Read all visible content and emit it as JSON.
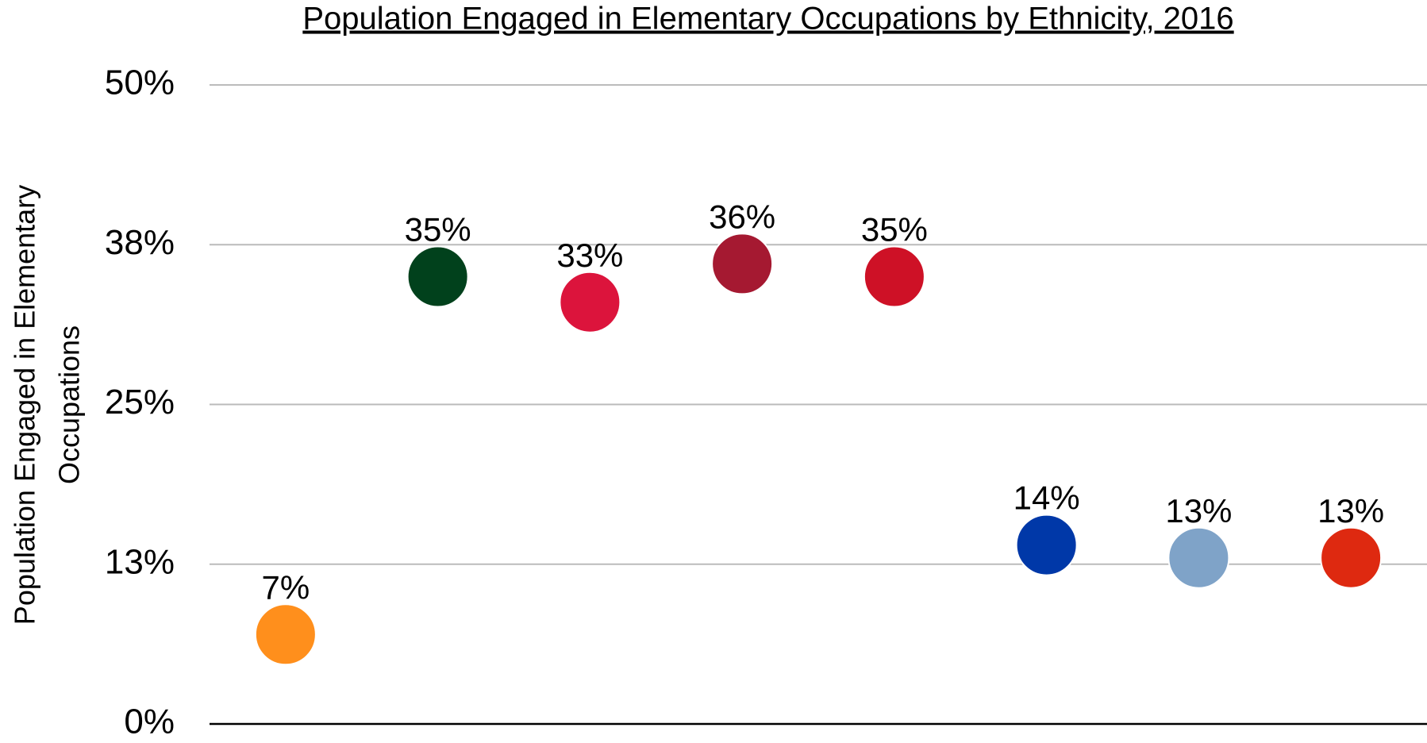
{
  "chart_data": {
    "type": "scatter",
    "title": "Population Engaged in Elementary Occupations by Ethnicity, 2016",
    "ylabel": [
      "Population Engaged in Elementary",
      "Occupations"
    ],
    "categories": [
      null,
      null,
      null,
      null,
      null,
      null,
      null,
      null
    ],
    "values": [
      7,
      35,
      33,
      36,
      35,
      14,
      13,
      13
    ],
    "value_labels": [
      "7%",
      "35%",
      "33%",
      "36%",
      "35%",
      "14%",
      "13%",
      "13%"
    ],
    "colors": [
      "#ff8f1c",
      "#01411c",
      "#dc143c",
      "#a51931",
      "#ce1126",
      "#0038a8",
      "#7fa3c8",
      "#de2910"
    ],
    "ylim": [
      0,
      50
    ],
    "yticks": [
      {
        "value": 0,
        "label": "0%"
      },
      {
        "value": 12.5,
        "label": "13%"
      },
      {
        "value": 25,
        "label": "25%"
      },
      {
        "value": 37.5,
        "label": "38%"
      },
      {
        "value": 50,
        "label": "50%"
      }
    ],
    "grid": true
  }
}
